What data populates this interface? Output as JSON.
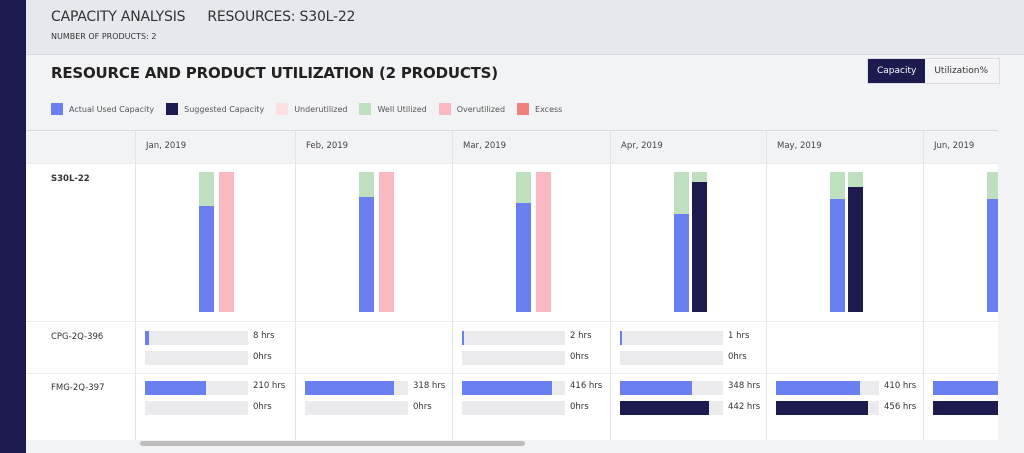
{
  "header": {
    "title": "CAPACITY ANALYSIS",
    "resources": "RESOURCES: S30L-22",
    "subtitle": "NUMBER OF PRODUCTS: 2"
  },
  "section_title": "RESOURCE AND PRODUCT UTILIZATION  (2 PRODUCTS)",
  "toggle": {
    "options": [
      "Capacity",
      "Utilization%"
    ],
    "selected": "Capacity"
  },
  "legend": [
    {
      "label": "Actual Used Capacity",
      "color": "#6a7ff0"
    },
    {
      "label": "Suggested Capacity",
      "color": "#1c1a4e"
    },
    {
      "label": "Underutilized",
      "color": "#fde0e0"
    },
    {
      "label": "Well Utilized",
      "color": "#bfe0bf"
    },
    {
      "label": "Overutilized",
      "color": "#f9b8c2"
    },
    {
      "label": "Excess",
      "color": "#f08080"
    }
  ],
  "resource": "S30L-22",
  "months": [
    {
      "label": "Jan, 2019",
      "actual_used": 0.76,
      "second_bar": "overutilized",
      "suggested": null
    },
    {
      "label": "Feb, 2019",
      "actual_used": 0.82,
      "second_bar": "overutilized",
      "suggested": null
    },
    {
      "label": "Mar, 2019",
      "actual_used": 0.78,
      "second_bar": "overutilized",
      "suggested": null
    },
    {
      "label": "Apr, 2019",
      "actual_used": 0.7,
      "second_bar": "suggested",
      "suggested": 0.93
    },
    {
      "label": "May, 2019",
      "actual_used": 0.81,
      "second_bar": "suggested",
      "suggested": 0.89
    },
    {
      "label": "Jun, 2019",
      "actual_used": 0.81,
      "second_bar": null,
      "suggested": null
    }
  ],
  "products": [
    {
      "name": "CPG-2Q-396",
      "values": [
        {
          "actual": "8 hrs",
          "actual_fill": 0.04,
          "suggested": "0hrs",
          "suggested_fill": 0
        },
        null,
        {
          "actual": "2 hrs",
          "actual_fill": 0.02,
          "suggested": "0hrs",
          "suggested_fill": 0
        },
        {
          "actual": "1 hrs",
          "actual_fill": 0.02,
          "suggested": "0hrs",
          "suggested_fill": 0
        },
        null,
        null
      ]
    },
    {
      "name": "FMG-2Q-397",
      "values": [
        {
          "actual": "210 hrs",
          "actual_fill": 0.59,
          "suggested": "0hrs",
          "suggested_fill": 0
        },
        {
          "actual": "318 hrs",
          "actual_fill": 0.86,
          "suggested": "0hrs",
          "suggested_fill": 0
        },
        {
          "actual": "416 hrs",
          "actual_fill": 0.87,
          "suggested": "0hrs",
          "suggested_fill": 0
        },
        {
          "actual": "348 hrs",
          "actual_fill": 0.7,
          "suggested": "442 hrs",
          "suggested_fill": 0.86
        },
        {
          "actual": "410 hrs",
          "actual_fill": 0.82,
          "suggested": "456 hrs",
          "suggested_fill": 0.89
        },
        {
          "actual": "",
          "actual_fill": 1,
          "suggested": "",
          "suggested_fill": 1
        }
      ]
    }
  ]
}
